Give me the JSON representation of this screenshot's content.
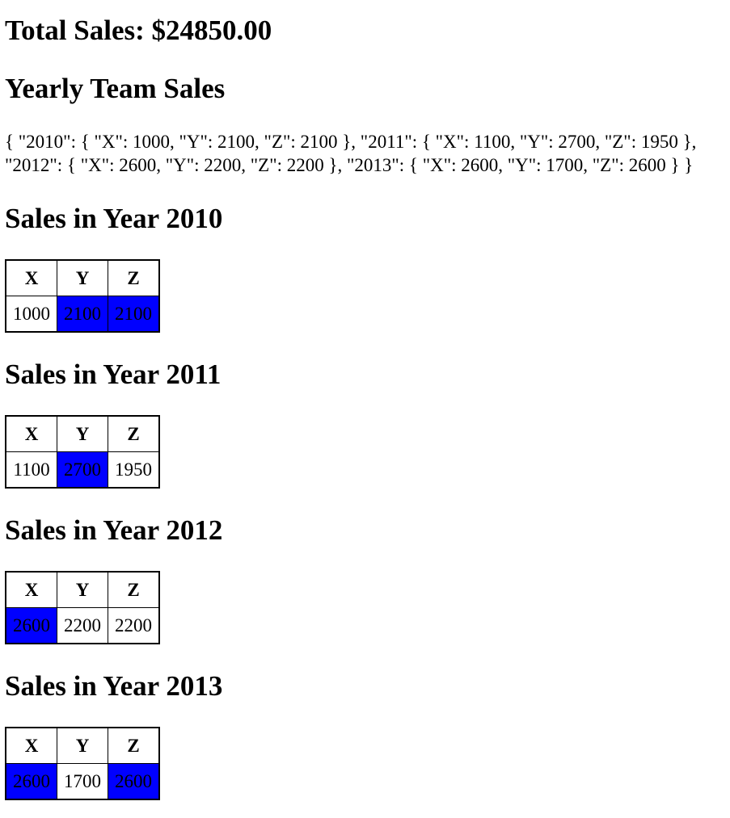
{
  "total_sales": "Total Sales: $24850.00",
  "yearly_title": "Yearly Team Sales",
  "json_text": "{ \"2010\": { \"X\": 1000, \"Y\": 2100, \"Z\": 2100 }, \"2011\": { \"X\": 1100, \"Y\": 2700, \"Z\": 1950 }, \"2012\": { \"X\": 2600, \"Y\": 2200, \"Z\": 2200 }, \"2013\": { \"X\": 2600, \"Y\": 1700, \"Z\": 2600 } }",
  "highlight_color": "#0000ff",
  "tables": [
    {
      "heading": "Sales in Year 2010",
      "headers": [
        "X",
        "Y",
        "Z"
      ],
      "values": [
        "1000",
        "2100",
        "2100"
      ],
      "highlighted": [
        false,
        true,
        true
      ]
    },
    {
      "heading": "Sales in Year 2011",
      "headers": [
        "X",
        "Y",
        "Z"
      ],
      "values": [
        "1100",
        "2700",
        "1950"
      ],
      "highlighted": [
        false,
        true,
        false
      ]
    },
    {
      "heading": "Sales in Year 2012",
      "headers": [
        "X",
        "Y",
        "Z"
      ],
      "values": [
        "2600",
        "2200",
        "2200"
      ],
      "highlighted": [
        true,
        false,
        false
      ]
    },
    {
      "heading": "Sales in Year 2013",
      "headers": [
        "X",
        "Y",
        "Z"
      ],
      "values": [
        "2600",
        "1700",
        "2600"
      ],
      "highlighted": [
        true,
        false,
        true
      ]
    }
  ]
}
